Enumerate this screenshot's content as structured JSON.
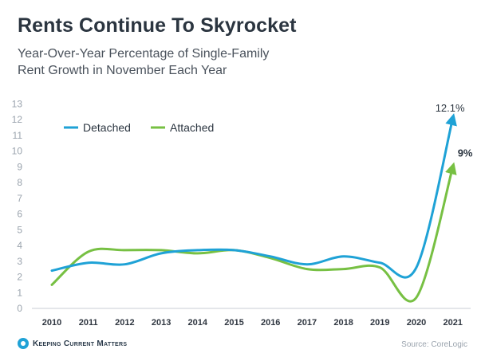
{
  "title": "Rents Continue To Skyrocket",
  "subtitle_line1": "Year-Over-Year Percentage of Single-Family",
  "subtitle_line2": "Rent Growth in November Each Year",
  "brand": "Keeping Current Matters",
  "source": "Source: CoreLogic",
  "colors": {
    "detached": "#1fa2d6",
    "attached": "#77c043",
    "axis_text": "#9aa3ad"
  },
  "chart_data": {
    "type": "line",
    "x": [
      "2010",
      "2011",
      "2012",
      "2013",
      "2014",
      "2015",
      "2016",
      "2017",
      "2018",
      "2019",
      "2020",
      "2021"
    ],
    "yticks": [
      0,
      1,
      2,
      3,
      4,
      5,
      6,
      7,
      8,
      9,
      10,
      11,
      12,
      13
    ],
    "ylim": [
      0,
      13
    ],
    "legend_position": "top-left",
    "grid": false,
    "series": [
      {
        "name": "Detached",
        "color": "#1fa2d6",
        "values": [
          2.4,
          2.9,
          2.8,
          3.5,
          3.7,
          3.7,
          3.3,
          2.8,
          3.3,
          2.9,
          2.6,
          12.1
        ],
        "end_label": "12.1%"
      },
      {
        "name": "Attached",
        "color": "#77c043",
        "values": [
          1.5,
          3.6,
          3.7,
          3.7,
          3.5,
          3.7,
          3.2,
          2.5,
          2.5,
          2.6,
          0.7,
          9.0
        ],
        "end_label": "9%"
      }
    ]
  }
}
